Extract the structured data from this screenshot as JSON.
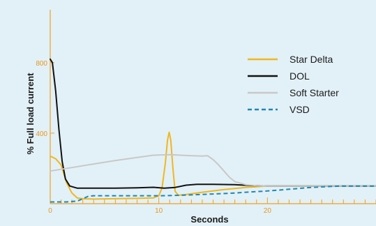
{
  "chart_data": {
    "type": "line",
    "title": "",
    "xlabel": "Seconds",
    "ylabel": "% Full load current",
    "xlim": [
      0,
      30
    ],
    "ylim": [
      0,
      1100
    ],
    "x_ticks": [
      0,
      10,
      20
    ],
    "y_ticks": [
      400,
      800
    ],
    "grid": false,
    "legend_position": "top-right",
    "series": [
      {
        "name": "Star Delta",
        "color": "#f2b61f",
        "style": "solid",
        "points": [
          [
            0,
            270
          ],
          [
            0.5,
            255
          ],
          [
            1,
            220
          ],
          [
            1.5,
            120
          ],
          [
            2,
            60
          ],
          [
            2.5,
            32
          ],
          [
            3,
            28
          ],
          [
            4,
            26
          ],
          [
            6,
            28
          ],
          [
            8,
            30
          ],
          [
            9.5,
            33
          ],
          [
            10,
            45
          ],
          [
            10.3,
            90
          ],
          [
            10.6,
            230
          ],
          [
            10.8,
            360
          ],
          [
            10.95,
            405
          ],
          [
            11.1,
            360
          ],
          [
            11.3,
            200
          ],
          [
            11.5,
            70
          ],
          [
            11.8,
            48
          ],
          [
            12.5,
            52
          ],
          [
            14,
            65
          ],
          [
            16,
            80
          ],
          [
            18,
            92
          ],
          [
            20,
            100
          ],
          [
            25,
            100
          ],
          [
            30,
            100
          ]
        ]
      },
      {
        "name": "DOL",
        "color": "#111111",
        "style": "solid",
        "points": [
          [
            0,
            820
          ],
          [
            0.2,
            800
          ],
          [
            0.5,
            640
          ],
          [
            0.8,
            420
          ],
          [
            1.1,
            240
          ],
          [
            1.4,
            140
          ],
          [
            1.8,
            100
          ],
          [
            2.5,
            88
          ],
          [
            4,
            88
          ],
          [
            6,
            88
          ],
          [
            8,
            90
          ],
          [
            9.5,
            93
          ],
          [
            10.5,
            88
          ],
          [
            11.5,
            92
          ],
          [
            12.5,
            105
          ],
          [
            13.5,
            110
          ],
          [
            15,
            110
          ],
          [
            17,
            108
          ],
          [
            18.5,
            103
          ],
          [
            20,
            100
          ],
          [
            30,
            100
          ]
        ]
      },
      {
        "name": "Soft Starter",
        "color": "#c8c8c8",
        "style": "solid",
        "points": [
          [
            0,
            185
          ],
          [
            2,
            205
          ],
          [
            4,
            225
          ],
          [
            6,
            245
          ],
          [
            8,
            262
          ],
          [
            9.5,
            275
          ],
          [
            11,
            278
          ],
          [
            12,
            275
          ],
          [
            13,
            272
          ],
          [
            14,
            270
          ],
          [
            14.5,
            272
          ],
          [
            15,
            250
          ],
          [
            15.5,
            220
          ],
          [
            16,
            185
          ],
          [
            16.5,
            150
          ],
          [
            17,
            125
          ],
          [
            18,
            108
          ],
          [
            19,
            102
          ],
          [
            20,
            100
          ],
          [
            30,
            100
          ]
        ]
      },
      {
        "name": "VSD",
        "color": "#1e88b4",
        "style": "dashed",
        "points": [
          [
            0,
            10
          ],
          [
            1.5,
            10
          ],
          [
            2.5,
            15
          ],
          [
            3,
            28
          ],
          [
            3.5,
            42
          ],
          [
            4,
            45
          ],
          [
            6,
            45
          ],
          [
            8,
            45
          ],
          [
            10,
            45
          ],
          [
            11,
            46
          ],
          [
            13,
            50
          ],
          [
            15,
            55
          ],
          [
            17,
            60
          ],
          [
            18,
            65
          ],
          [
            20,
            72
          ],
          [
            22,
            82
          ],
          [
            24,
            92
          ],
          [
            26,
            98
          ],
          [
            27,
            100
          ],
          [
            30,
            100
          ]
        ]
      }
    ]
  }
}
